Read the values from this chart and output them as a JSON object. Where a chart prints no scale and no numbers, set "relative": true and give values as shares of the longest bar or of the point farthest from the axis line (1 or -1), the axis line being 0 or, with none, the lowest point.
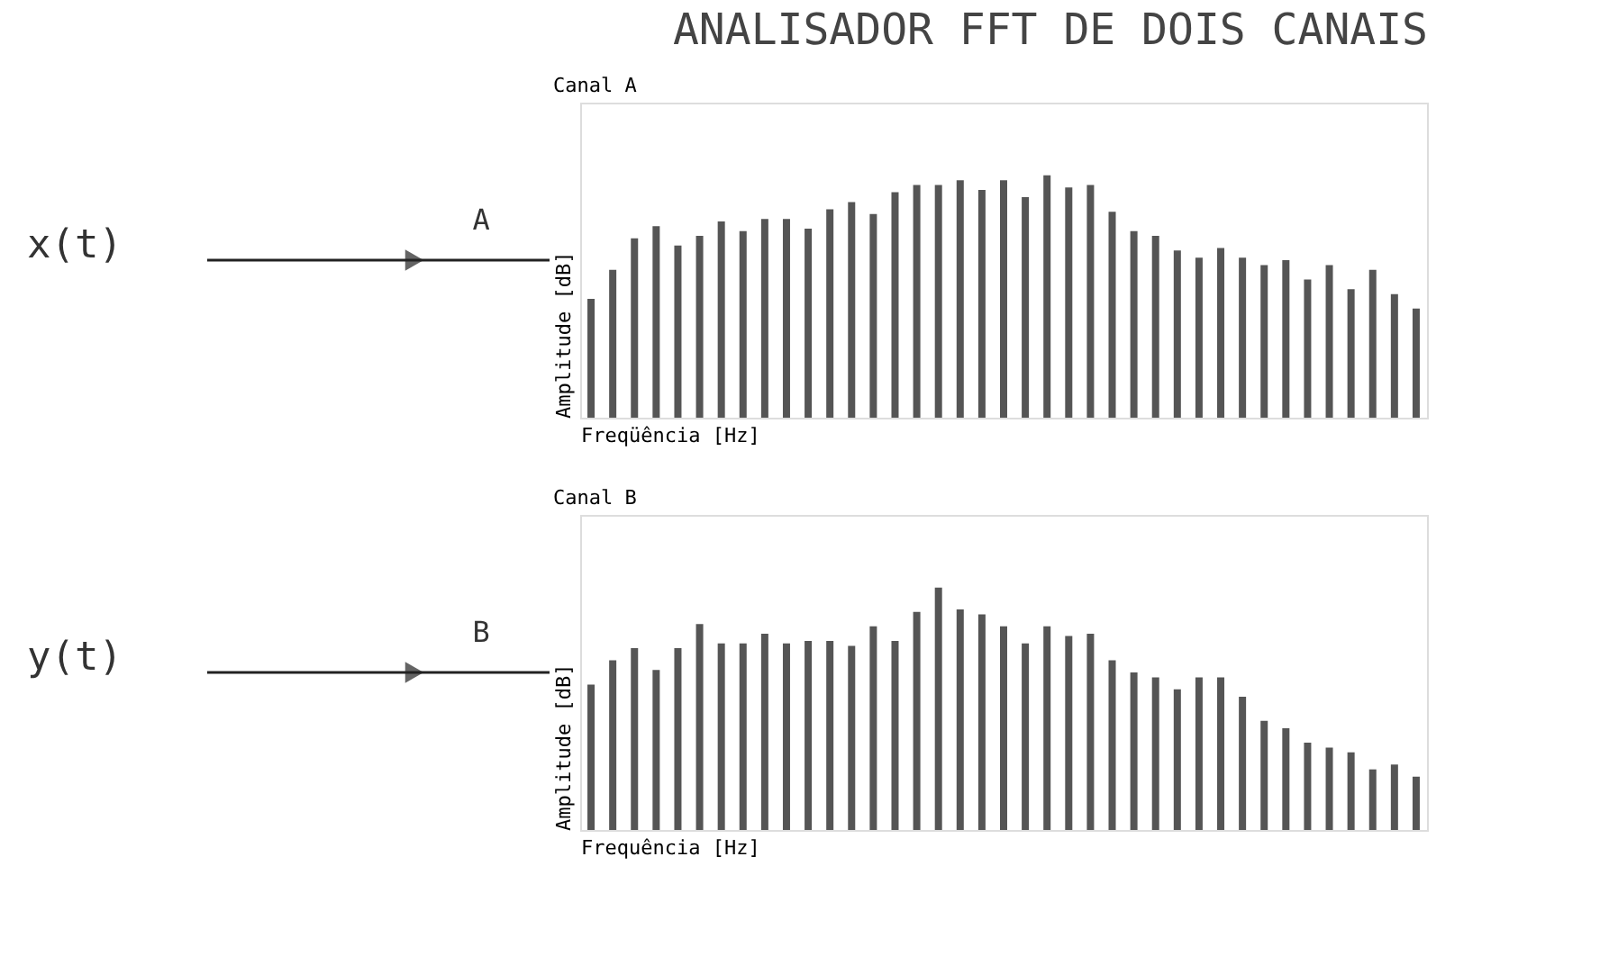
{
  "chart_data": [
    {
      "type": "bar",
      "title": "Canal A",
      "xlabel": "Freqüência [Hz]",
      "ylabel": "Amplitude [dB]",
      "relative": true,
      "color": "#555555",
      "annotations": [
        "ANALISADOR FFT DE DOIS CANAIS",
        "x(t)",
        "A"
      ],
      "categories": [
        null,
        null,
        null,
        null,
        null,
        null,
        null,
        null,
        null,
        null,
        null,
        null,
        null,
        null,
        null,
        null,
        null,
        null,
        null,
        null,
        null,
        null,
        null,
        null,
        null,
        null,
        null,
        null,
        null,
        null,
        null,
        null,
        null,
        null,
        null,
        null,
        null,
        null,
        null
      ],
      "values": [
        0.49,
        0.61,
        0.74,
        0.79,
        0.71,
        0.75,
        0.81,
        0.77,
        0.82,
        0.82,
        0.78,
        0.86,
        0.89,
        0.84,
        0.93,
        0.96,
        0.96,
        0.98,
        0.94,
        0.98,
        0.91,
        1,
        0.95,
        0.96,
        0.85,
        0.77,
        0.75,
        0.69,
        0.66,
        0.7,
        0.66,
        0.63,
        0.65,
        0.57,
        0.63,
        0.53,
        0.61,
        0.51,
        0.45
      ]
    },
    {
      "type": "bar",
      "title": "Canal B",
      "xlabel": "Frequência [Hz]",
      "ylabel": "Amplitude [dB]",
      "relative": true,
      "color": "#555555",
      "annotations": [
        "y(t)",
        "B"
      ],
      "categories": [
        null,
        null,
        null,
        null,
        null,
        null,
        null,
        null,
        null,
        null,
        null,
        null,
        null,
        null,
        null,
        null,
        null,
        null,
        null,
        null,
        null,
        null,
        null,
        null,
        null,
        null,
        null,
        null,
        null,
        null,
        null,
        null,
        null,
        null,
        null,
        null,
        null,
        null,
        null
      ],
      "values": [
        0.6,
        0.7,
        0.75,
        0.66,
        0.75,
        0.85,
        0.77,
        0.77,
        0.81,
        0.77,
        0.78,
        0.78,
        0.76,
        0.84,
        0.78,
        0.9,
        1,
        0.91,
        0.89,
        0.84,
        0.77,
        0.84,
        0.8,
        0.81,
        0.7,
        0.65,
        0.63,
        0.58,
        0.63,
        0.63,
        0.55,
        0.45,
        0.42,
        0.36,
        0.34,
        0.32,
        0.25,
        0.27,
        0.22
      ]
    }
  ]
}
